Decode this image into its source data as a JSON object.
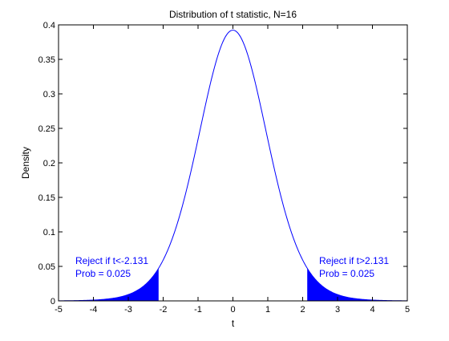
{
  "chart_data": {
    "type": "line",
    "title": "Distribution of t statistic, N=16",
    "xlabel": "t",
    "ylabel": "Density",
    "xlim": [
      -5,
      5
    ],
    "ylim": [
      0,
      0.4
    ],
    "x_ticks": [
      -5,
      -4,
      -3,
      -2,
      -1,
      0,
      1,
      2,
      3,
      4,
      5
    ],
    "x_tick_labels": [
      "-5",
      "-4",
      "-3",
      "-2",
      "-1",
      "0",
      "1",
      "2",
      "3",
      "4",
      "5"
    ],
    "y_ticks": [
      0,
      0.05,
      0.1,
      0.15,
      0.2,
      0.25,
      0.3,
      0.35,
      0.4
    ],
    "y_tick_labels": [
      "0",
      "0.05",
      "0.1",
      "0.15",
      "0.2",
      "0.25",
      "0.3",
      "0.35",
      "0.4"
    ],
    "grid": false,
    "series": [
      {
        "distribution": "student-t",
        "degrees_of_freedom": 15,
        "x_range": [
          -5,
          5
        ],
        "color": "#0000ff"
      }
    ],
    "shaded_regions": [
      {
        "x_from": -5,
        "x_to": -2.131,
        "color": "#0000ff"
      },
      {
        "x_from": 2.131,
        "x_to": 5,
        "color": "#0000ff"
      }
    ],
    "annotations": [
      {
        "side": "left",
        "line1": "Reject if t<-2.131",
        "line2": "Prob = 0.025",
        "color": "#0000ff"
      },
      {
        "side": "right",
        "line1": "Reject if t>2.131",
        "line2": "Prob = 0.025",
        "color": "#0000ff"
      }
    ]
  }
}
